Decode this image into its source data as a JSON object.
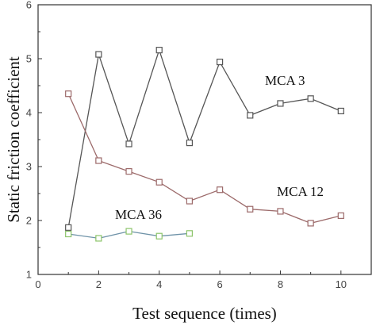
{
  "chart_data": {
    "type": "line",
    "xlabel": "Test sequence (times)",
    "ylabel": "Static friction coefficient",
    "xlim": [
      0,
      11
    ],
    "ylim": [
      1,
      6
    ],
    "x_ticks": [
      "0",
      "2",
      "4",
      "6",
      "8",
      "10"
    ],
    "y_ticks": [
      "1",
      "2",
      "3",
      "4",
      "5",
      "6"
    ],
    "grid": false,
    "legend": "none",
    "series": [
      {
        "name": "MCA 3",
        "color": "#555555",
        "x": [
          1,
          2,
          3,
          4,
          5,
          6,
          7,
          8,
          9,
          10
        ],
        "values": [
          1.87,
          5.08,
          3.42,
          5.16,
          3.44,
          4.94,
          3.95,
          4.17,
          4.26,
          4.03
        ]
      },
      {
        "name": "MCA 12",
        "color": "#9c6a6a",
        "x": [
          1,
          2,
          3,
          4,
          5,
          6,
          7,
          8,
          9,
          10
        ],
        "values": [
          4.35,
          3.11,
          2.91,
          2.71,
          2.36,
          2.57,
          2.21,
          2.17,
          1.95,
          2.09
        ]
      },
      {
        "name": "MCA 36",
        "color": "#6f93a8",
        "marker_color": "#8cc46a",
        "x": [
          1,
          2,
          3,
          4,
          5
        ],
        "values": [
          1.75,
          1.67,
          1.8,
          1.71,
          1.76
        ]
      }
    ]
  }
}
